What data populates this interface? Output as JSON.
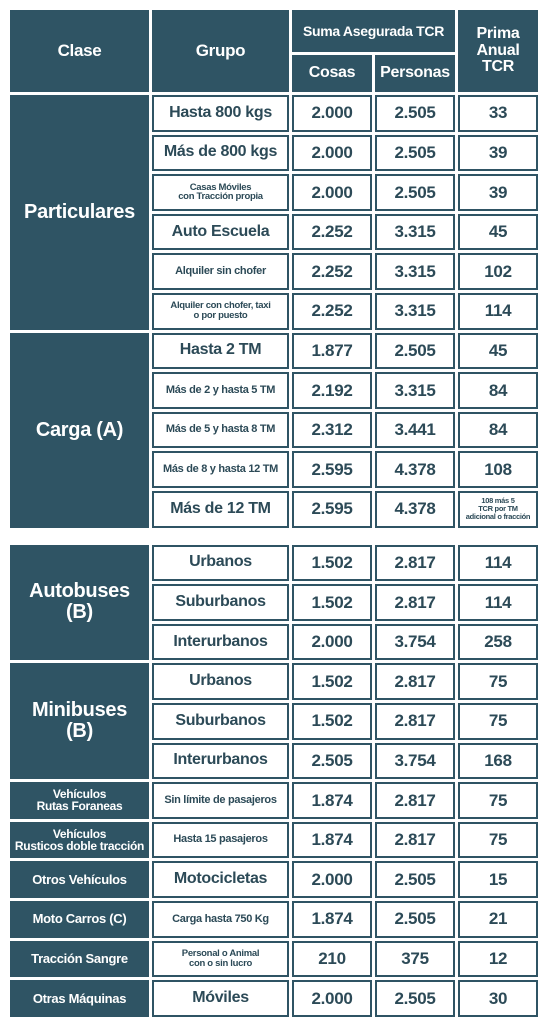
{
  "header": {
    "clase": "Clase",
    "grupo": "Grupo",
    "suma": "Suma Asegurada TCR",
    "cosas": "Cosas",
    "personas": "Personas",
    "prima": "Prima\nAnual\nTCR"
  },
  "groups": [
    {
      "clase": "Particulares",
      "rows": [
        {
          "grupo": "Hasta 800 kgs",
          "cosas": "2.000",
          "personas": "2.505",
          "prima": "33"
        },
        {
          "grupo": "Más de 800 kgs",
          "cosas": "2.000",
          "personas": "2.505",
          "prima": "39"
        },
        {
          "grupo": "Casas Móviles\ncon Tracción propia",
          "cosas": "2.000",
          "personas": "2.505",
          "prima": "39"
        },
        {
          "grupo": "Auto Escuela",
          "cosas": "2.252",
          "personas": "3.315",
          "prima": "45"
        },
        {
          "grupo": "Alquiler sin chofer",
          "cosas": "2.252",
          "personas": "3.315",
          "prima": "102"
        },
        {
          "grupo": "Alquiler con chofer, taxi\no por puesto",
          "cosas": "2.252",
          "personas": "3.315",
          "prima": "114"
        }
      ]
    },
    {
      "clase": "Carga (A)",
      "rows": [
        {
          "grupo": "Hasta 2 TM",
          "cosas": "1.877",
          "personas": "2.505",
          "prima": "45"
        },
        {
          "grupo": "Más de 2 y hasta 5 TM",
          "cosas": "2.192",
          "personas": "3.315",
          "prima": "84"
        },
        {
          "grupo": "Más de 5 y hasta 8 TM",
          "cosas": "2.312",
          "personas": "3.441",
          "prima": "84"
        },
        {
          "grupo": "Más de 8 y hasta 12 TM",
          "cosas": "2.595",
          "personas": "4.378",
          "prima": "108"
        },
        {
          "grupo": "Más de 12 TM",
          "cosas": "2.595",
          "personas": "4.378",
          "prima": "108 más 5\nTCR por TM\nadicional o fracción"
        }
      ]
    },
    {
      "clase": "Autobuses\n(B)",
      "rows": [
        {
          "grupo": "Urbanos",
          "cosas": "1.502",
          "personas": "2.817",
          "prima": "114"
        },
        {
          "grupo": "Suburbanos",
          "cosas": "1.502",
          "personas": "2.817",
          "prima": "114"
        },
        {
          "grupo": "Interurbanos",
          "cosas": "2.000",
          "personas": "3.754",
          "prima": "258"
        }
      ]
    },
    {
      "clase": "Minibuses\n(B)",
      "rows": [
        {
          "grupo": "Urbanos",
          "cosas": "1.502",
          "personas": "2.817",
          "prima": "75"
        },
        {
          "grupo": "Suburbanos",
          "cosas": "1.502",
          "personas": "2.817",
          "prima": "75"
        },
        {
          "grupo": "Interurbanos",
          "cosas": "2.505",
          "personas": "3.754",
          "prima": "168"
        }
      ]
    },
    {
      "clase": "Vehículos\nRutas Foraneas",
      "rows": [
        {
          "grupo": "Sin límite de pasajeros",
          "cosas": "1.874",
          "personas": "2.817",
          "prima": "75"
        }
      ]
    },
    {
      "clase": "Vehículos\nRusticos doble tracción",
      "rows": [
        {
          "grupo": "Hasta 15 pasajeros",
          "cosas": "1.874",
          "personas": "2.817",
          "prima": "75"
        }
      ]
    },
    {
      "clase": "Otros Vehículos",
      "rows": [
        {
          "grupo": "Motocicletas",
          "cosas": "2.000",
          "personas": "2.505",
          "prima": "15"
        }
      ]
    },
    {
      "clase": "Moto Carros (C)",
      "rows": [
        {
          "grupo": "Carga hasta 750 Kg",
          "cosas": "1.874",
          "personas": "2.505",
          "prima": "21"
        }
      ]
    },
    {
      "clase": "Tracción Sangre",
      "rows": [
        {
          "grupo": "Personal o Animal\ncon o sin lucro",
          "cosas": "210",
          "personas": "375",
          "prima": "12"
        }
      ]
    },
    {
      "clase": "Otras Máquinas",
      "rows": [
        {
          "grupo": "Móviles",
          "cosas": "2.000",
          "personas": "2.505",
          "prima": "30"
        }
      ]
    }
  ]
}
